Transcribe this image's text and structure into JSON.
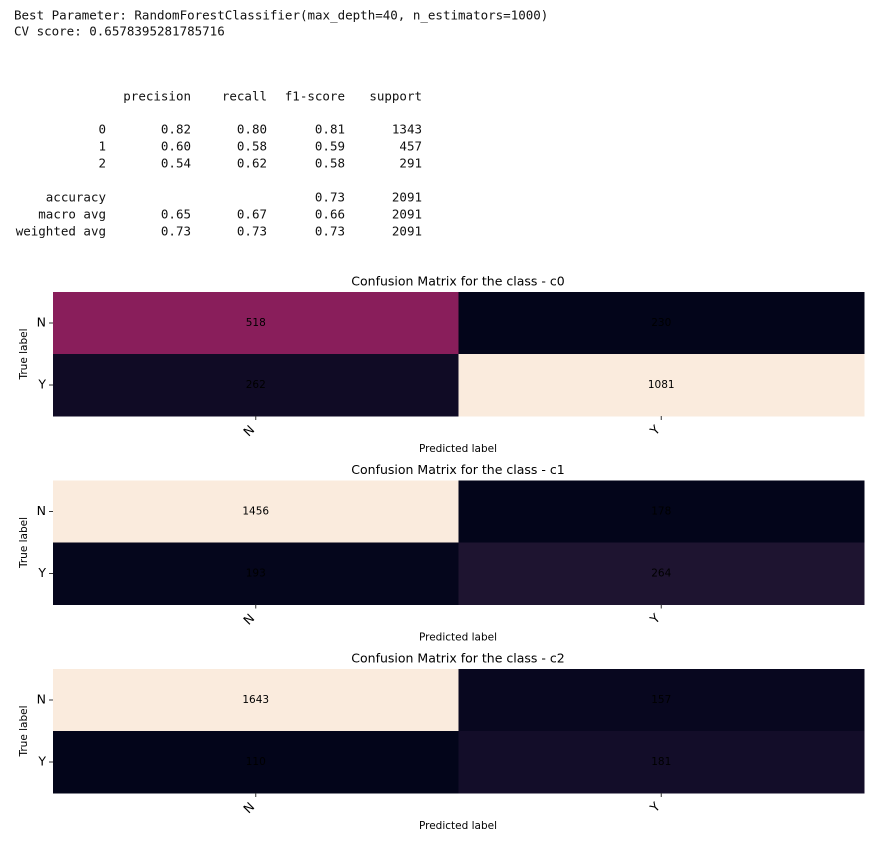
{
  "output": {
    "best_parameter": "Best Parameter: RandomForestClassifier(max_depth=40, n_estimators=1000)",
    "cv_score": "CV score: 0.6578395281785716",
    "report": {
      "header": [
        "precision",
        "recall",
        "f1-score",
        "support"
      ],
      "rows": [
        [
          "0",
          "0.82",
          "0.80",
          "0.81",
          "1343"
        ],
        [
          "1",
          "0.60",
          "0.58",
          "0.59",
          "457"
        ],
        [
          "2",
          "0.54",
          "0.62",
          "0.58",
          "291"
        ],
        [
          "accuracy",
          null,
          null,
          "0.73",
          "2091"
        ],
        [
          "macro avg",
          "0.65",
          "0.67",
          "0.66",
          "2091"
        ],
        [
          "weighted avg",
          "0.73",
          "0.73",
          "0.73",
          "2091"
        ]
      ]
    }
  },
  "chart_data": [
    {
      "type": "heatmap",
      "title": "Confusion Matrix for the class - c0",
      "x_categories": [
        "N",
        "Y"
      ],
      "y_categories": [
        "N",
        "Y"
      ],
      "xlabel": "Predicted label",
      "ylabel": "True label",
      "values": [
        [
          518,
          230
        ],
        [
          262,
          1081
        ]
      ],
      "colors": [
        [
          "#891e5b",
          "#03051a"
        ],
        [
          "#100b25",
          "#faebdd"
        ]
      ]
    },
    {
      "type": "heatmap",
      "title": "Confusion Matrix for the class - c1",
      "x_categories": [
        "N",
        "Y"
      ],
      "y_categories": [
        "N",
        "Y"
      ],
      "xlabel": "Predicted label",
      "ylabel": "True label",
      "values": [
        [
          1456,
          178
        ],
        [
          193,
          264
        ]
      ],
      "colors": [
        [
          "#faebdd",
          "#03051a"
        ],
        [
          "#05061c",
          "#1e1430"
        ]
      ]
    },
    {
      "type": "heatmap",
      "title": "Confusion Matrix for the class - c2",
      "x_categories": [
        "N",
        "Y"
      ],
      "y_categories": [
        "N",
        "Y"
      ],
      "xlabel": "Predicted label",
      "ylabel": "True label",
      "values": [
        [
          1643,
          157
        ],
        [
          110,
          181
        ]
      ],
      "colors": [
        [
          "#faebdd",
          "#08071f"
        ],
        [
          "#03051a",
          "#130d29"
        ]
      ]
    }
  ]
}
